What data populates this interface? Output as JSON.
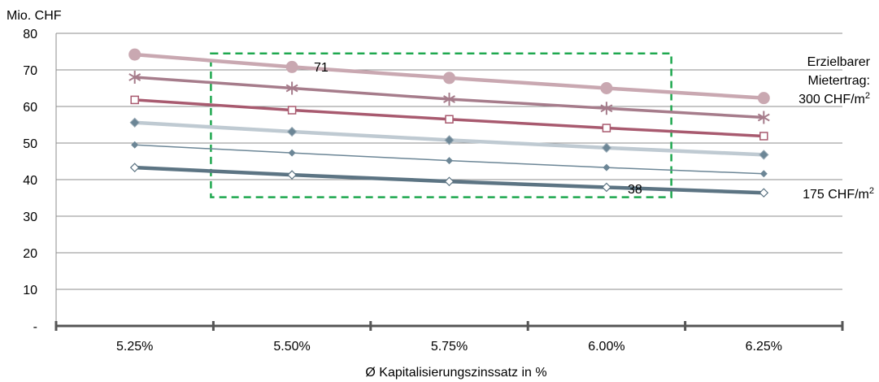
{
  "chart_data": {
    "type": "line",
    "ylabel": "Mio. CHF",
    "xlabel": "Ø Kapitalisierungszinssatz in %",
    "categories": [
      "5.25%",
      "5.50%",
      "5.75%",
      "6.00%",
      "6.25%"
    ],
    "ylim": [
      0,
      80
    ],
    "yticks": [
      {
        "value": 0,
        "label": "-"
      },
      {
        "value": 10,
        "label": "10"
      },
      {
        "value": 20,
        "label": "20"
      },
      {
        "value": 30,
        "label": "30"
      },
      {
        "value": 40,
        "label": "40"
      },
      {
        "value": 50,
        "label": "50"
      },
      {
        "value": 60,
        "label": "60"
      },
      {
        "value": 70,
        "label": "70"
      },
      {
        "value": 80,
        "label": "80"
      }
    ],
    "grid": "horizontal",
    "series": [
      {
        "values": [
          74.2,
          70.8,
          67.8,
          65.0,
          62.3
        ],
        "color": "#c9a8b1",
        "marker": "circle"
      },
      {
        "values": [
          68.0,
          65.0,
          62.0,
          59.5,
          57.0
        ],
        "color": "#a67c8b",
        "marker": "asterisk"
      },
      {
        "values": [
          61.8,
          59.0,
          56.5,
          54.1,
          51.9
        ],
        "color": "#a85a6f",
        "marker": "open-square"
      },
      {
        "values": [
          55.6,
          53.1,
          50.8,
          48.7,
          46.8
        ],
        "color": "#bfcad2",
        "marker": "diamond"
      },
      {
        "values": [
          49.5,
          47.3,
          45.2,
          43.3,
          41.6
        ],
        "color": "#6c8696",
        "marker": "small-diamond"
      },
      {
        "values": [
          43.3,
          41.3,
          39.5,
          37.9,
          36.4
        ],
        "color": "#5c7483",
        "marker": "open-diamond"
      }
    ],
    "annotations": {
      "label_71": "71",
      "label_38": "38",
      "top_label_lines": [
        "Erzielbarer",
        "Mietertrag:",
        "300 CHF/m"
      ],
      "top_label_sup": "2",
      "bottom_label": "175 CHF/m",
      "bottom_label_sup": "2"
    },
    "highlight_box_color": "#1fa84f"
  }
}
